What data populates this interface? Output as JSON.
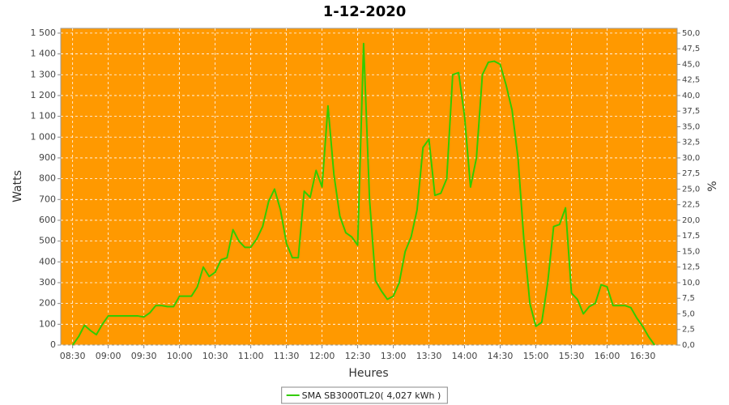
{
  "chart_data": {
    "type": "line",
    "title": "1-12-2020",
    "x_label": "Heures",
    "y_label": "Watts",
    "y2_label": "%",
    "background": "#ff9900",
    "grid": true,
    "x": [
      "08:30",
      "08:35",
      "08:40",
      "08:45",
      "08:50",
      "08:55",
      "09:00",
      "09:05",
      "09:10",
      "09:15",
      "09:20",
      "09:25",
      "09:30",
      "09:35",
      "09:40",
      "09:45",
      "09:50",
      "09:55",
      "10:00",
      "10:05",
      "10:10",
      "10:15",
      "10:20",
      "10:25",
      "10:30",
      "10:35",
      "10:40",
      "10:45",
      "10:50",
      "10:55",
      "11:00",
      "11:05",
      "11:10",
      "11:15",
      "11:20",
      "11:25",
      "11:30",
      "11:35",
      "11:40",
      "11:45",
      "11:50",
      "11:55",
      "12:00",
      "12:05",
      "12:10",
      "12:15",
      "12:20",
      "12:25",
      "12:30",
      "12:35",
      "12:40",
      "12:45",
      "12:50",
      "12:55",
      "13:00",
      "13:05",
      "13:10",
      "13:15",
      "13:20",
      "13:25",
      "13:30",
      "13:35",
      "13:40",
      "13:45",
      "13:50",
      "13:55",
      "14:00",
      "14:05",
      "14:10",
      "14:15",
      "14:20",
      "14:25",
      "14:30",
      "14:35",
      "14:40",
      "14:45",
      "14:50",
      "14:55",
      "15:00",
      "15:05",
      "15:10",
      "15:15",
      "15:20",
      "15:25",
      "15:30",
      "15:35",
      "15:40",
      "15:45",
      "15:50",
      "15:55",
      "16:00",
      "16:05",
      "16:10",
      "16:15",
      "16:20",
      "16:25",
      "16:30",
      "16:35",
      "16:40"
    ],
    "series": [
      {
        "name": "SMA SB3000TL20( 4,027 kWh )",
        "color": "#33cc00",
        "values": [
          0,
          40,
          95,
          70,
          50,
          100,
          140,
          140,
          140,
          140,
          140,
          140,
          135,
          155,
          190,
          190,
          185,
          185,
          235,
          235,
          235,
          280,
          375,
          330,
          350,
          410,
          420,
          555,
          500,
          470,
          470,
          510,
          570,
          690,
          750,
          650,
          490,
          420,
          420,
          740,
          710,
          840,
          760,
          1150,
          820,
          620,
          540,
          520,
          480,
          1450,
          700,
          310,
          260,
          220,
          235,
          300,
          450,
          520,
          650,
          950,
          990,
          720,
          730,
          800,
          1300,
          1310,
          1100,
          760,
          900,
          1300,
          1360,
          1365,
          1350,
          1250,
          1130,
          900,
          500,
          200,
          90,
          110,
          300,
          570,
          580,
          660,
          250,
          220,
          150,
          185,
          200,
          290,
          280,
          190,
          190,
          190,
          180,
          130,
          90,
          40,
          0
        ]
      }
    ],
    "xlim": [
      "08:20",
      "16:59"
    ],
    "xticks": [
      "08:30",
      "09:00",
      "09:30",
      "10:00",
      "10:30",
      "11:00",
      "11:30",
      "12:00",
      "12:30",
      "13:00",
      "13:30",
      "14:00",
      "14:30",
      "15:00",
      "15:30",
      "16:00",
      "16:30"
    ],
    "ylim": [
      0,
      1523
    ],
    "yticks": [
      0,
      100,
      200,
      300,
      400,
      500,
      600,
      700,
      800,
      900,
      {
        "value": 1000,
        "label": "1 000"
      },
      {
        "value": 1100,
        "label": "1 100"
      },
      {
        "value": 1200,
        "label": "1 200"
      },
      {
        "value": 1300,
        "label": "1 300"
      },
      {
        "value": 1400,
        "label": "1 400"
      },
      {
        "value": 1500,
        "label": "1 500"
      }
    ],
    "y2lim": [
      0,
      50.77
    ],
    "y2ticks": [
      {
        "value": 0,
        "label": "0,0"
      },
      {
        "value": 2.5,
        "label": "2,5"
      },
      {
        "value": 5,
        "label": "5,0"
      },
      {
        "value": 7.5,
        "label": "7,5"
      },
      {
        "value": 10,
        "label": "10,0"
      },
      {
        "value": 12.5,
        "label": "12,5"
      },
      {
        "value": 15,
        "label": "15,0"
      },
      {
        "value": 17.5,
        "label": "17,5"
      },
      {
        "value": 20,
        "label": "20,0"
      },
      {
        "value": 22.5,
        "label": "22,5"
      },
      {
        "value": 25,
        "label": "25,0"
      },
      {
        "value": 27.5,
        "label": "27,5"
      },
      {
        "value": 30,
        "label": "30,0"
      },
      {
        "value": 32.5,
        "label": "32,5"
      },
      {
        "value": 35,
        "label": "35,0"
      },
      {
        "value": 37.5,
        "label": "37,5"
      },
      {
        "value": 40,
        "label": "40,0"
      },
      {
        "value": 42.5,
        "label": "42,5"
      },
      {
        "value": 45,
        "label": "45,0"
      },
      {
        "value": 47.5,
        "label": "47,5"
      },
      {
        "value": 50,
        "label": "50,0"
      }
    ]
  }
}
